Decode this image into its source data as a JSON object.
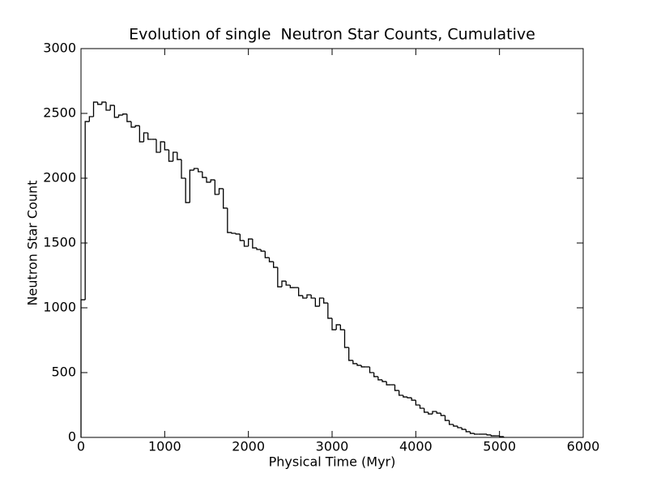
{
  "chart_data": {
    "type": "histogram_step",
    "title": "Evolution of single  Neutron Star Counts, Cumulative",
    "xlabel": "Physical Time (Myr)",
    "ylabel": "Neutron Star Count",
    "color": "#000000",
    "bins": [
      0,
      50,
      100,
      150,
      200,
      250,
      300,
      350,
      400,
      450,
      500,
      550,
      600,
      650,
      700,
      750,
      800,
      850,
      900,
      950,
      1000,
      1050,
      1100,
      1150,
      1200,
      1250,
      1300,
      1350,
      1400,
      1450,
      1500,
      1550,
      1600,
      1650,
      1700,
      1750,
      1800,
      1850,
      1900,
      1950,
      2000,
      2050,
      2100,
      2150,
      2200,
      2250,
      2300,
      2350,
      2400,
      2450,
      2500,
      2550,
      2600,
      2650,
      2700,
      2750,
      2800,
      2850,
      2900,
      2950,
      3000,
      3050,
      3100,
      3150,
      3200,
      3250,
      3300,
      3350,
      3400,
      3450,
      3500,
      3550,
      3600,
      3650,
      3700,
      3750,
      3800,
      3850,
      3900,
      3950,
      4000,
      4050,
      4100,
      4150,
      4200,
      4250,
      4300,
      4350,
      4400,
      4450,
      4500,
      4550,
      4600,
      4650,
      4700,
      4750,
      4800,
      4850,
      4900,
      4950,
      5000,
      5050
    ],
    "values": [
      1062,
      2437,
      2475,
      2587,
      2570,
      2587,
      2525,
      2562,
      2470,
      2487,
      2495,
      2437,
      2394,
      2405,
      2281,
      2350,
      2300,
      2300,
      2200,
      2281,
      2219,
      2131,
      2200,
      2144,
      2000,
      1812,
      2062,
      2075,
      2050,
      2006,
      1969,
      1987,
      1875,
      1919,
      1769,
      1581,
      1575,
      1569,
      1519,
      1475,
      1531,
      1462,
      1450,
      1437,
      1387,
      1356,
      1312,
      1162,
      1206,
      1175,
      1156,
      1156,
      1094,
      1075,
      1100,
      1075,
      1012,
      1075,
      1037,
      919,
      831,
      869,
      831,
      694,
      594,
      569,
      556,
      544,
      544,
      500,
      469,
      444,
      431,
      406,
      406,
      362,
      325,
      312,
      306,
      287,
      250,
      225,
      194,
      181,
      200,
      187,
      169,
      131,
      100,
      87,
      75,
      62,
      44,
      31,
      25,
      25,
      25,
      19,
      12,
      12,
      6
    ],
    "xlim": [
      0,
      6000
    ],
    "xticks": [
      0,
      1000,
      2000,
      3000,
      4000,
      5000,
      6000
    ],
    "ylim": [
      0,
      3000
    ],
    "yticks": [
      0,
      500,
      1000,
      1500,
      2000,
      2500,
      3000
    ]
  }
}
